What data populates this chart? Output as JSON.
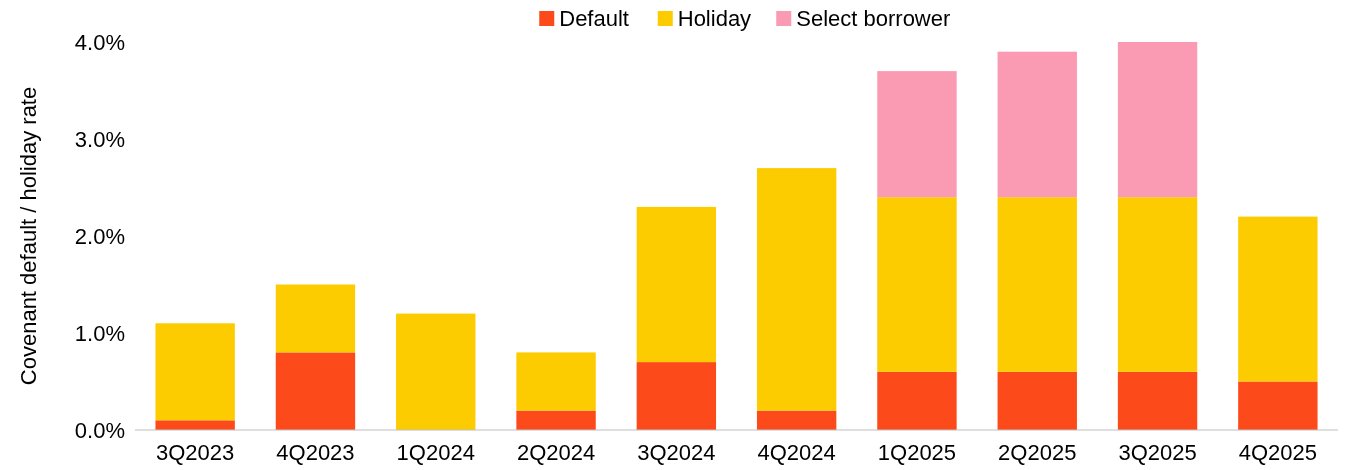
{
  "chart_data": {
    "type": "bar",
    "stacked": true,
    "ylabel": "Covenant default / holiday rate",
    "categories": [
      "3Q2023",
      "4Q2023",
      "1Q2024",
      "2Q2024",
      "3Q2024",
      "4Q2024",
      "1Q2025",
      "2Q2025",
      "3Q2025",
      "4Q2025"
    ],
    "series": [
      {
        "name": "Default",
        "color": "#fc4a1a",
        "values": [
          0.1,
          0.8,
          0,
          0.2,
          0.7,
          0.2,
          0.6,
          0.6,
          0.6,
          0.5
        ]
      },
      {
        "name": "Holiday",
        "color": "#fccc00",
        "values": [
          1.0,
          0.7,
          1.2,
          0.6,
          1.6,
          2.5,
          1.8,
          1.8,
          1.8,
          1.7
        ]
      },
      {
        "name": "Select borrower",
        "color": "#fb9bb3",
        "values": [
          0,
          0,
          0,
          0,
          0,
          0,
          1.3,
          1.5,
          1.6,
          0
        ]
      }
    ],
    "ylim": [
      0,
      4
    ],
    "yticks": [
      {
        "value": 0,
        "label": "0.0%"
      },
      {
        "value": 1,
        "label": "1.0%"
      },
      {
        "value": 2,
        "label": "2.0%"
      },
      {
        "value": 3,
        "label": "3.0%"
      },
      {
        "value": 4,
        "label": "4.0%"
      }
    ],
    "legend": "top",
    "grid": false
  }
}
